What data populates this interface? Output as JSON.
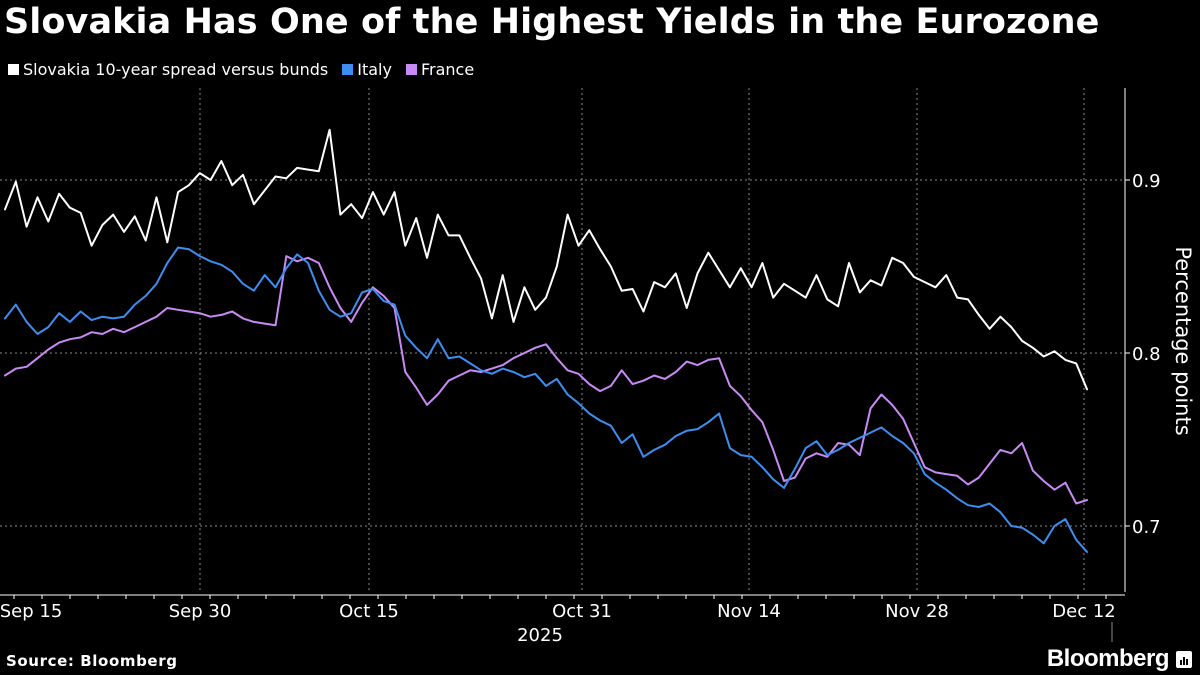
{
  "title": "Slovakia Has One of the Highest Yields in the Eurozone",
  "source": "Source: Bloomberg",
  "brand": "Bloomberg",
  "colors": {
    "background": "#000000",
    "slovakia": "#ffffff",
    "italy": "#3d8ef0",
    "france": "#c98af5",
    "grid": "#8a8a8a"
  },
  "chart_data": {
    "type": "line",
    "title": "Slovakia Has One of the Highest Yields in the Eurozone",
    "xlabel": "2025",
    "ylabel": "Percentage points",
    "ylim": [
      0.658,
      0.95
    ],
    "yticks": [
      0.7,
      0.8,
      0.9
    ],
    "ytick_labels": [
      "0.7",
      "0.8",
      "0.9"
    ],
    "xticks": [
      "Sep 15",
      "Sep 30",
      "Oct 15",
      "Oct 31",
      "Nov 14",
      "Nov 28",
      "Dec 12"
    ],
    "x_year_label": "2025",
    "grid": true,
    "legend_position": "top-left",
    "series": [
      {
        "name": "Slovakia 10-year spread versus bunds",
        "color": "#ffffff",
        "points": [
          [
            0,
            0.883
          ],
          [
            1,
            0.899
          ],
          [
            2,
            0.873
          ],
          [
            3,
            0.89
          ],
          [
            4,
            0.876
          ],
          [
            5,
            0.892
          ],
          [
            6,
            0.884
          ],
          [
            7,
            0.881
          ],
          [
            8,
            0.862
          ],
          [
            9,
            0.874
          ],
          [
            10,
            0.88
          ],
          [
            11,
            0.87
          ],
          [
            12,
            0.879
          ],
          [
            13,
            0.865
          ],
          [
            14,
            0.89
          ],
          [
            15,
            0.864
          ],
          [
            16,
            0.893
          ],
          [
            17,
            0.897
          ],
          [
            18,
            0.904
          ],
          [
            19,
            0.9
          ],
          [
            20,
            0.911
          ],
          [
            21,
            0.897
          ],
          [
            22,
            0.903
          ],
          [
            23,
            0.886
          ],
          [
            24,
            0.894
          ],
          [
            25,
            0.902
          ],
          [
            26,
            0.901
          ],
          [
            27,
            0.907
          ],
          [
            28,
            0.906
          ],
          [
            29,
            0.905
          ],
          [
            30,
            0.929
          ],
          [
            31,
            0.88
          ],
          [
            32,
            0.886
          ],
          [
            33,
            0.878
          ],
          [
            34,
            0.893
          ],
          [
            35,
            0.88
          ],
          [
            36,
            0.893
          ],
          [
            37,
            0.862
          ],
          [
            38,
            0.878
          ],
          [
            39,
            0.855
          ],
          [
            40,
            0.88
          ],
          [
            41,
            0.868
          ],
          [
            42,
            0.868
          ],
          [
            43,
            0.855
          ],
          [
            44,
            0.843
          ],
          [
            45,
            0.82
          ],
          [
            46,
            0.845
          ],
          [
            47,
            0.818
          ],
          [
            48,
            0.838
          ],
          [
            49,
            0.825
          ],
          [
            50,
            0.832
          ],
          [
            51,
            0.85
          ],
          [
            52,
            0.88
          ],
          [
            53,
            0.862
          ],
          [
            54,
            0.871
          ],
          [
            55,
            0.86
          ],
          [
            56,
            0.85
          ],
          [
            57,
            0.836
          ],
          [
            58,
            0.837
          ],
          [
            59,
            0.824
          ],
          [
            60,
            0.841
          ],
          [
            61,
            0.838
          ],
          [
            62,
            0.846
          ],
          [
            63,
            0.826
          ],
          [
            64,
            0.846
          ],
          [
            65,
            0.858
          ],
          [
            66,
            0.848
          ],
          [
            67,
            0.838
          ],
          [
            68,
            0.849
          ],
          [
            69,
            0.838
          ],
          [
            70,
            0.852
          ],
          [
            71,
            0.832
          ],
          [
            72,
            0.84
          ],
          [
            73,
            0.836
          ],
          [
            74,
            0.832
          ],
          [
            75,
            0.845
          ],
          [
            76,
            0.831
          ],
          [
            77,
            0.827
          ],
          [
            78,
            0.852
          ],
          [
            79,
            0.835
          ],
          [
            80,
            0.842
          ],
          [
            81,
            0.839
          ],
          [
            82,
            0.855
          ],
          [
            83,
            0.852
          ],
          [
            84,
            0.844
          ],
          [
            85,
            0.841
          ],
          [
            86,
            0.838
          ],
          [
            87,
            0.845
          ],
          [
            88,
            0.832
          ],
          [
            89,
            0.831
          ],
          [
            90,
            0.822
          ],
          [
            91,
            0.814
          ],
          [
            92,
            0.821
          ],
          [
            93,
            0.815
          ],
          [
            94,
            0.807
          ],
          [
            95,
            0.803
          ],
          [
            96,
            0.798
          ],
          [
            97,
            0.801
          ],
          [
            98,
            0.796
          ],
          [
            99,
            0.794
          ],
          [
            100,
            0.779
          ]
        ]
      },
      {
        "name": "Italy",
        "color": "#3d8ef0",
        "points": [
          [
            0,
            0.82
          ],
          [
            1,
            0.828
          ],
          [
            2,
            0.818
          ],
          [
            3,
            0.811
          ],
          [
            4,
            0.815
          ],
          [
            5,
            0.823
          ],
          [
            6,
            0.818
          ],
          [
            7,
            0.824
          ],
          [
            8,
            0.819
          ],
          [
            9,
            0.821
          ],
          [
            10,
            0.82
          ],
          [
            11,
            0.821
          ],
          [
            12,
            0.828
          ],
          [
            13,
            0.833
          ],
          [
            14,
            0.84
          ],
          [
            15,
            0.852
          ],
          [
            16,
            0.861
          ],
          [
            17,
            0.86
          ],
          [
            18,
            0.856
          ],
          [
            19,
            0.853
          ],
          [
            20,
            0.851
          ],
          [
            21,
            0.847
          ],
          [
            22,
            0.84
          ],
          [
            23,
            0.836
          ],
          [
            24,
            0.845
          ],
          [
            25,
            0.838
          ],
          [
            26,
            0.849
          ],
          [
            27,
            0.857
          ],
          [
            28,
            0.852
          ],
          [
            29,
            0.836
          ],
          [
            30,
            0.825
          ],
          [
            31,
            0.821
          ],
          [
            32,
            0.823
          ],
          [
            33,
            0.835
          ],
          [
            34,
            0.837
          ],
          [
            35,
            0.83
          ],
          [
            36,
            0.828
          ],
          [
            37,
            0.81
          ],
          [
            38,
            0.803
          ],
          [
            39,
            0.797
          ],
          [
            40,
            0.808
          ],
          [
            41,
            0.797
          ],
          [
            42,
            0.798
          ],
          [
            43,
            0.794
          ],
          [
            44,
            0.79
          ],
          [
            45,
            0.788
          ],
          [
            46,
            0.791
          ],
          [
            47,
            0.789
          ],
          [
            48,
            0.786
          ],
          [
            49,
            0.788
          ],
          [
            50,
            0.781
          ],
          [
            51,
            0.785
          ],
          [
            52,
            0.776
          ],
          [
            53,
            0.771
          ],
          [
            54,
            0.765
          ],
          [
            55,
            0.761
          ],
          [
            56,
            0.758
          ],
          [
            57,
            0.748
          ],
          [
            58,
            0.753
          ],
          [
            59,
            0.74
          ],
          [
            60,
            0.744
          ],
          [
            61,
            0.747
          ],
          [
            62,
            0.752
          ],
          [
            63,
            0.755
          ],
          [
            64,
            0.756
          ],
          [
            65,
            0.76
          ],
          [
            66,
            0.765
          ],
          [
            67,
            0.745
          ],
          [
            68,
            0.741
          ],
          [
            69,
            0.74
          ],
          [
            70,
            0.734
          ],
          [
            71,
            0.727
          ],
          [
            72,
            0.722
          ],
          [
            73,
            0.733
          ],
          [
            74,
            0.745
          ],
          [
            75,
            0.749
          ],
          [
            76,
            0.741
          ],
          [
            77,
            0.744
          ],
          [
            78,
            0.748
          ],
          [
            79,
            0.751
          ],
          [
            80,
            0.754
          ],
          [
            81,
            0.757
          ],
          [
            82,
            0.752
          ],
          [
            83,
            0.748
          ],
          [
            84,
            0.742
          ],
          [
            85,
            0.73
          ],
          [
            86,
            0.725
          ],
          [
            87,
            0.721
          ],
          [
            88,
            0.716
          ],
          [
            89,
            0.712
          ],
          [
            90,
            0.711
          ],
          [
            91,
            0.713
          ],
          [
            92,
            0.708
          ],
          [
            93,
            0.7
          ],
          [
            94,
            0.699
          ],
          [
            95,
            0.695
          ],
          [
            96,
            0.69
          ],
          [
            97,
            0.7
          ],
          [
            98,
            0.704
          ],
          [
            99,
            0.692
          ],
          [
            100,
            0.685
          ]
        ]
      },
      {
        "name": "France",
        "color": "#c98af5",
        "points": [
          [
            0,
            0.787
          ],
          [
            1,
            0.791
          ],
          [
            2,
            0.792
          ],
          [
            3,
            0.797
          ],
          [
            4,
            0.802
          ],
          [
            5,
            0.806
          ],
          [
            6,
            0.808
          ],
          [
            7,
            0.809
          ],
          [
            8,
            0.812
          ],
          [
            9,
            0.811
          ],
          [
            10,
            0.814
          ],
          [
            11,
            0.812
          ],
          [
            12,
            0.815
          ],
          [
            13,
            0.818
          ],
          [
            14,
            0.821
          ],
          [
            15,
            0.826
          ],
          [
            16,
            0.825
          ],
          [
            17,
            0.824
          ],
          [
            18,
            0.823
          ],
          [
            19,
            0.821
          ],
          [
            20,
            0.822
          ],
          [
            21,
            0.824
          ],
          [
            22,
            0.82
          ],
          [
            23,
            0.818
          ],
          [
            24,
            0.817
          ],
          [
            25,
            0.816
          ],
          [
            26,
            0.856
          ],
          [
            27,
            0.853
          ],
          [
            28,
            0.855
          ],
          [
            29,
            0.852
          ],
          [
            30,
            0.838
          ],
          [
            31,
            0.826
          ],
          [
            32,
            0.818
          ],
          [
            33,
            0.829
          ],
          [
            34,
            0.838
          ],
          [
            35,
            0.833
          ],
          [
            36,
            0.826
          ],
          [
            37,
            0.789
          ],
          [
            38,
            0.78
          ],
          [
            39,
            0.77
          ],
          [
            40,
            0.776
          ],
          [
            41,
            0.784
          ],
          [
            42,
            0.787
          ],
          [
            43,
            0.79
          ],
          [
            44,
            0.789
          ],
          [
            45,
            0.791
          ],
          [
            46,
            0.793
          ],
          [
            47,
            0.797
          ],
          [
            48,
            0.8
          ],
          [
            49,
            0.803
          ],
          [
            50,
            0.805
          ],
          [
            51,
            0.797
          ],
          [
            52,
            0.79
          ],
          [
            53,
            0.788
          ],
          [
            54,
            0.782
          ],
          [
            55,
            0.778
          ],
          [
            56,
            0.781
          ],
          [
            57,
            0.79
          ],
          [
            58,
            0.782
          ],
          [
            59,
            0.784
          ],
          [
            60,
            0.787
          ],
          [
            61,
            0.785
          ],
          [
            62,
            0.789
          ],
          [
            63,
            0.795
          ],
          [
            64,
            0.793
          ],
          [
            65,
            0.796
          ],
          [
            66,
            0.797
          ],
          [
            67,
            0.781
          ],
          [
            68,
            0.775
          ],
          [
            69,
            0.767
          ],
          [
            70,
            0.76
          ],
          [
            71,
            0.744
          ],
          [
            72,
            0.726
          ],
          [
            73,
            0.728
          ],
          [
            74,
            0.739
          ],
          [
            75,
            0.742
          ],
          [
            76,
            0.74
          ],
          [
            77,
            0.748
          ],
          [
            78,
            0.747
          ],
          [
            79,
            0.741
          ],
          [
            80,
            0.768
          ],
          [
            81,
            0.776
          ],
          [
            82,
            0.77
          ],
          [
            83,
            0.762
          ],
          [
            84,
            0.748
          ],
          [
            85,
            0.734
          ],
          [
            86,
            0.731
          ],
          [
            87,
            0.73
          ],
          [
            88,
            0.729
          ],
          [
            89,
            0.724
          ],
          [
            90,
            0.728
          ],
          [
            91,
            0.736
          ],
          [
            92,
            0.744
          ],
          [
            93,
            0.742
          ],
          [
            94,
            0.748
          ],
          [
            95,
            0.732
          ],
          [
            96,
            0.726
          ],
          [
            97,
            0.721
          ],
          [
            98,
            0.725
          ],
          [
            99,
            0.713
          ],
          [
            100,
            0.715
          ]
        ]
      }
    ]
  }
}
